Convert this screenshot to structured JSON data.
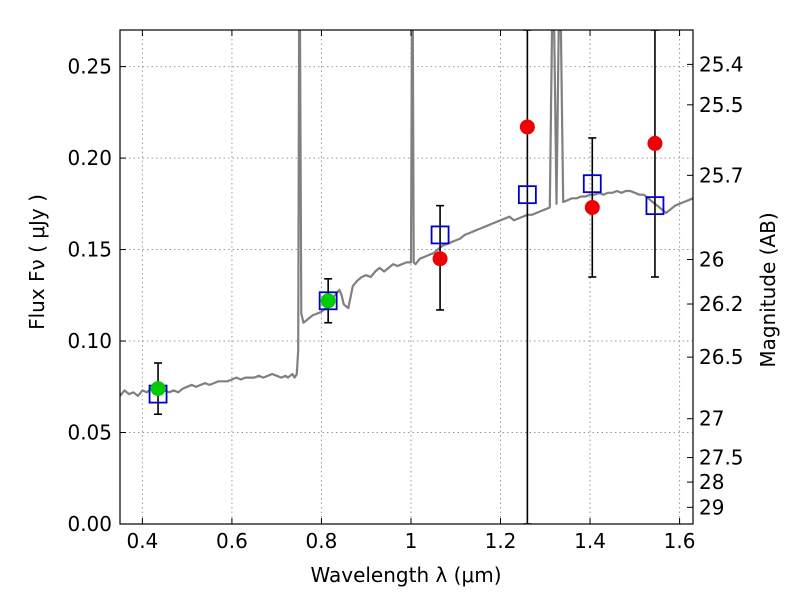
{
  "chart_data": {
    "type": "scatter",
    "xlabel": "Wavelength  λ (μm)",
    "ylabel": "Flux  Fν  ( μJy )",
    "y2label": "Magnitude (AB)",
    "xlim": [
      0.35,
      1.63
    ],
    "ylim": [
      0.0,
      0.27
    ],
    "grid": true,
    "x_ticks": [
      {
        "value": 0.4,
        "label": "0.4"
      },
      {
        "value": 0.6,
        "label": "0.6"
      },
      {
        "value": 0.8,
        "label": "0.8"
      },
      {
        "value": 1.0,
        "label": "1"
      },
      {
        "value": 1.2,
        "label": "1.2"
      },
      {
        "value": 1.4,
        "label": "1.4"
      },
      {
        "value": 1.6,
        "label": "1.6"
      }
    ],
    "y_ticks": [
      {
        "value": 0.0,
        "label": "0.00"
      },
      {
        "value": 0.05,
        "label": "0.05"
      },
      {
        "value": 0.1,
        "label": "0.10"
      },
      {
        "value": 0.15,
        "label": "0.15"
      },
      {
        "value": 0.2,
        "label": "0.20"
      },
      {
        "value": 0.25,
        "label": "0.25"
      }
    ],
    "magnitude_ticks": [
      {
        "value": 25.4,
        "label": "25.4"
      },
      {
        "value": 25.5,
        "label": "25.5"
      },
      {
        "value": 25.7,
        "label": "25.7"
      },
      {
        "value": 26.0,
        "label": "26"
      },
      {
        "value": 26.2,
        "label": "26.2"
      },
      {
        "value": 26.5,
        "label": "26.5"
      },
      {
        "value": 27.0,
        "label": "27"
      },
      {
        "value": 27.5,
        "label": "27.5"
      },
      {
        "value": 28.0,
        "label": "28"
      },
      {
        "value": 29.0,
        "label": "29"
      }
    ],
    "series": [
      {
        "kind": "line",
        "color": "#808080",
        "points": [
          [
            0.35,
            0.07
          ],
          [
            0.36,
            0.073
          ],
          [
            0.37,
            0.071
          ],
          [
            0.38,
            0.072
          ],
          [
            0.39,
            0.07
          ],
          [
            0.4,
            0.073
          ],
          [
            0.41,
            0.072
          ],
          [
            0.42,
            0.074
          ],
          [
            0.43,
            0.073
          ],
          [
            0.44,
            0.072
          ],
          [
            0.45,
            0.073
          ],
          [
            0.46,
            0.072
          ],
          [
            0.47,
            0.073
          ],
          [
            0.48,
            0.072
          ],
          [
            0.49,
            0.074
          ],
          [
            0.5,
            0.075
          ],
          [
            0.51,
            0.076
          ],
          [
            0.52,
            0.075
          ],
          [
            0.53,
            0.076
          ],
          [
            0.54,
            0.077
          ],
          [
            0.55,
            0.076
          ],
          [
            0.56,
            0.077
          ],
          [
            0.57,
            0.078
          ],
          [
            0.58,
            0.078
          ],
          [
            0.59,
            0.078
          ],
          [
            0.6,
            0.079
          ],
          [
            0.61,
            0.08
          ],
          [
            0.62,
            0.079
          ],
          [
            0.63,
            0.08
          ],
          [
            0.64,
            0.08
          ],
          [
            0.65,
            0.08
          ],
          [
            0.66,
            0.081
          ],
          [
            0.67,
            0.08
          ],
          [
            0.68,
            0.081
          ],
          [
            0.69,
            0.082
          ],
          [
            0.7,
            0.081
          ],
          [
            0.71,
            0.08
          ],
          [
            0.72,
            0.081
          ],
          [
            0.725,
            0.08
          ],
          [
            0.73,
            0.081
          ],
          [
            0.735,
            0.082
          ],
          [
            0.74,
            0.08
          ],
          [
            0.745,
            0.082
          ],
          [
            0.748,
            0.095
          ],
          [
            0.75,
            0.27
          ],
          [
            0.752,
            0.27
          ],
          [
            0.755,
            0.115
          ],
          [
            0.76,
            0.11
          ],
          [
            0.77,
            0.112
          ],
          [
            0.78,
            0.114
          ],
          [
            0.79,
            0.115
          ],
          [
            0.8,
            0.116
          ],
          [
            0.81,
            0.118
          ],
          [
            0.82,
            0.122
          ],
          [
            0.83,
            0.125
          ],
          [
            0.84,
            0.128
          ],
          [
            0.845,
            0.125
          ],
          [
            0.85,
            0.12
          ],
          [
            0.86,
            0.118
          ],
          [
            0.87,
            0.13
          ],
          [
            0.88,
            0.133
          ],
          [
            0.89,
            0.135
          ],
          [
            0.9,
            0.136
          ],
          [
            0.91,
            0.135
          ],
          [
            0.92,
            0.138
          ],
          [
            0.93,
            0.14
          ],
          [
            0.94,
            0.138
          ],
          [
            0.95,
            0.14
          ],
          [
            0.96,
            0.142
          ],
          [
            0.97,
            0.141
          ],
          [
            0.98,
            0.142
          ],
          [
            0.99,
            0.143
          ],
          [
            1.0,
            0.143
          ],
          [
            1.002,
            0.27
          ],
          [
            1.004,
            0.27
          ],
          [
            1.006,
            0.143
          ],
          [
            1.01,
            0.142
          ],
          [
            1.02,
            0.145
          ],
          [
            1.03,
            0.146
          ],
          [
            1.04,
            0.147
          ],
          [
            1.05,
            0.148
          ],
          [
            1.06,
            0.15
          ],
          [
            1.07,
            0.152
          ],
          [
            1.08,
            0.153
          ],
          [
            1.09,
            0.154
          ],
          [
            1.1,
            0.155
          ],
          [
            1.11,
            0.156
          ],
          [
            1.12,
            0.158
          ],
          [
            1.13,
            0.159
          ],
          [
            1.14,
            0.16
          ],
          [
            1.15,
            0.161
          ],
          [
            1.16,
            0.162
          ],
          [
            1.17,
            0.163
          ],
          [
            1.18,
            0.164
          ],
          [
            1.19,
            0.165
          ],
          [
            1.2,
            0.166
          ],
          [
            1.21,
            0.167
          ],
          [
            1.22,
            0.168
          ],
          [
            1.23,
            0.166
          ],
          [
            1.24,
            0.167
          ],
          [
            1.25,
            0.168
          ],
          [
            1.26,
            0.169
          ],
          [
            1.27,
            0.169
          ],
          [
            1.28,
            0.17
          ],
          [
            1.29,
            0.171
          ],
          [
            1.3,
            0.172
          ],
          [
            1.31,
            0.173
          ],
          [
            1.315,
            0.27
          ],
          [
            1.32,
            0.27
          ],
          [
            1.325,
            0.175
          ],
          [
            1.33,
            0.27
          ],
          [
            1.335,
            0.27
          ],
          [
            1.34,
            0.176
          ],
          [
            1.35,
            0.177
          ],
          [
            1.36,
            0.178
          ],
          [
            1.37,
            0.178
          ],
          [
            1.38,
            0.179
          ],
          [
            1.39,
            0.179
          ],
          [
            1.4,
            0.18
          ],
          [
            1.41,
            0.18
          ],
          [
            1.42,
            0.181
          ],
          [
            1.43,
            0.18
          ],
          [
            1.44,
            0.181
          ],
          [
            1.45,
            0.181
          ],
          [
            1.46,
            0.182
          ],
          [
            1.47,
            0.181
          ],
          [
            1.48,
            0.182
          ],
          [
            1.49,
            0.182
          ],
          [
            1.5,
            0.181
          ],
          [
            1.51,
            0.18
          ],
          [
            1.52,
            0.18
          ],
          [
            1.53,
            0.178
          ],
          [
            1.54,
            0.176
          ],
          [
            1.55,
            0.174
          ],
          [
            1.56,
            0.172
          ],
          [
            1.57,
            0.17
          ],
          [
            1.58,
            0.172
          ],
          [
            1.59,
            0.174
          ],
          [
            1.6,
            0.175
          ],
          [
            1.61,
            0.176
          ],
          [
            1.62,
            0.177
          ],
          [
            1.63,
            0.178
          ]
        ]
      },
      {
        "kind": "open-square",
        "color": "#0000cc",
        "points": [
          [
            0.435,
            0.071
          ],
          [
            0.815,
            0.122
          ],
          [
            1.065,
            0.158
          ],
          [
            1.26,
            0.18
          ],
          [
            1.405,
            0.186
          ],
          [
            1.545,
            0.174
          ]
        ]
      },
      {
        "kind": "filled-circle",
        "color": "#00cc00",
        "points": [
          {
            "x": 0.435,
            "y": 0.074,
            "err_low": 0.06,
            "err_high": 0.088
          },
          {
            "x": 0.815,
            "y": 0.122,
            "err_low": 0.11,
            "err_high": 0.134
          }
        ]
      },
      {
        "kind": "filled-circle",
        "color": "#ee0000",
        "points": [
          {
            "x": 1.065,
            "y": 0.145,
            "err_low": 0.117,
            "err_high": 0.174
          },
          {
            "x": 1.26,
            "y": 0.217,
            "err_low": 0.0,
            "err_high": 0.27
          },
          {
            "x": 1.405,
            "y": 0.173,
            "err_low": 0.135,
            "err_high": 0.211
          },
          {
            "x": 1.545,
            "y": 0.208,
            "err_low": 0.135,
            "err_high": 0.27
          }
        ]
      }
    ]
  }
}
